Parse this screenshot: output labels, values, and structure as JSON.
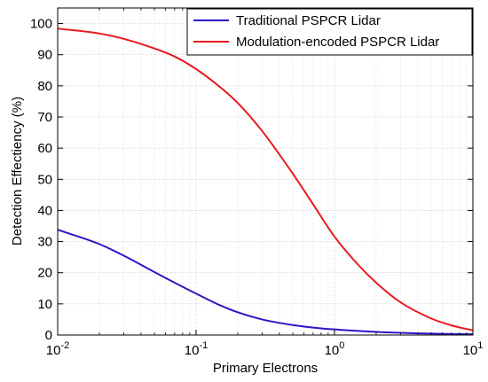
{
  "chart_data": {
    "type": "line",
    "title": "",
    "xlabel": "Primary Electrons",
    "ylabel": "Detection Effectiency (%)",
    "xscale": "log",
    "xlim": [
      0.01,
      10
    ],
    "ylim": [
      0,
      105
    ],
    "grid": true,
    "legend_position": "top-right",
    "x_ticks": [
      {
        "value": 0.01,
        "base": "10",
        "exp": "-2"
      },
      {
        "value": 0.1,
        "base": "10",
        "exp": "-1"
      },
      {
        "value": 1,
        "base": "10",
        "exp": "0"
      },
      {
        "value": 10,
        "base": "10",
        "exp": "1"
      }
    ],
    "y_ticks": [
      0,
      10,
      20,
      30,
      40,
      50,
      60,
      70,
      80,
      90,
      100
    ],
    "series": [
      {
        "name": "Traditional PSPCR Lidar",
        "color": "#2a16c8",
        "x": [
          0.01,
          0.02,
          0.03,
          0.05,
          0.07,
          0.1,
          0.15,
          0.2,
          0.3,
          0.5,
          0.7,
          1,
          2,
          3,
          5,
          7,
          10
        ],
        "y": [
          33.8,
          29.2,
          25.5,
          20.2,
          16.8,
          13.3,
          9.5,
          7.3,
          5.0,
          3.2,
          2.4,
          1.8,
          1.0,
          0.7,
          0.45,
          0.32,
          0.25
        ]
      },
      {
        "name": "Modulation-encoded PSPCR Lidar",
        "color": "#e8191f",
        "x": [
          0.01,
          0.02,
          0.03,
          0.05,
          0.07,
          0.1,
          0.15,
          0.2,
          0.3,
          0.5,
          0.7,
          1,
          1.5,
          2,
          3,
          5,
          7,
          10
        ],
        "y": [
          98.4,
          96.8,
          95.1,
          92.0,
          89.4,
          85.4,
          79.5,
          74.5,
          65.5,
          51.8,
          42.0,
          31.6,
          22.3,
          16.8,
          10.5,
          5.3,
          3.1,
          1.5
        ]
      }
    ]
  }
}
